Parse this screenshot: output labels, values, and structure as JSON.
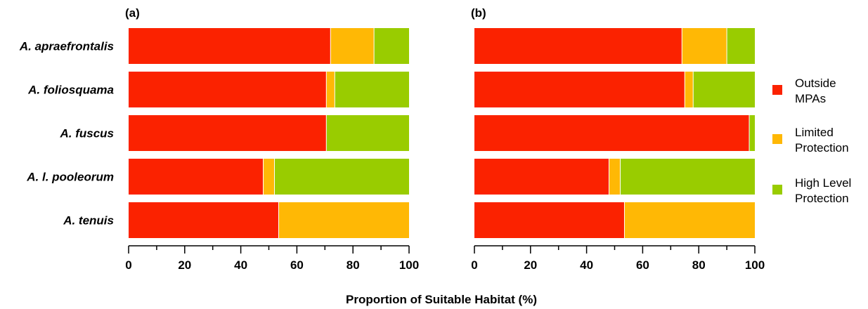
{
  "chart_data": {
    "type": "bar",
    "stacked": true,
    "orientation": "horizontal",
    "xlabel": "Proportion of Suitable Habitat (%)",
    "xlim": [
      0,
      100
    ],
    "xticks": [
      "0",
      "20",
      "40",
      "60",
      "80",
      "100"
    ],
    "categories": [
      "A. apraefrontalis",
      "A. foliosquama",
      "A. fuscus",
      "A. l. pooleorum",
      "A. tenuis"
    ],
    "legend": {
      "placement": "right",
      "items": [
        {
          "label_lines": [
            "Outside",
            "MPAs"
          ],
          "color": "#fb2200"
        },
        {
          "label_lines": [
            "Limited",
            "Protection"
          ],
          "color": "#ffb805"
        },
        {
          "label_lines": [
            "High Level",
            "Protection"
          ],
          "color": "#99cc00"
        }
      ]
    },
    "panels": [
      {
        "label": "(a)",
        "series": [
          {
            "values": [
              72,
              70.5,
              70.5,
              48,
              53.5
            ]
          },
          {
            "values": [
              15.5,
              3,
              0,
              4,
              46.5
            ]
          },
          {
            "values": [
              12.5,
              26.5,
              29.5,
              48,
              0
            ]
          }
        ]
      },
      {
        "label": "(b)",
        "series": [
          {
            "values": [
              74,
              75,
              98,
              48,
              53.5
            ]
          },
          {
            "values": [
              16,
              3,
              0,
              4,
              46.5
            ]
          },
          {
            "values": [
              10,
              22,
              2,
              48,
              0
            ]
          }
        ]
      }
    ]
  }
}
